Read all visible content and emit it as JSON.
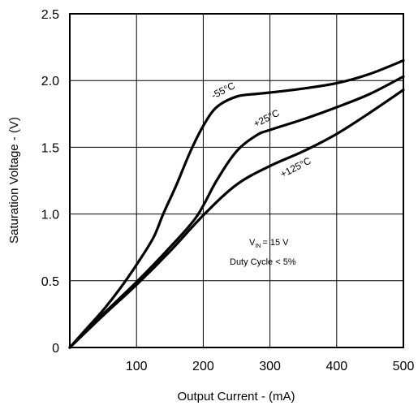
{
  "chart_data": {
    "type": "line",
    "xlabel": "Output Current - (mA)",
    "ylabel": "Saturation Voltage - (V)",
    "xlim": [
      0,
      500
    ],
    "ylim": [
      0,
      2.5
    ],
    "x_ticks": [
      100,
      200,
      300,
      400,
      500
    ],
    "x_tick_labels": [
      "100",
      "200",
      "300",
      "400",
      "500"
    ],
    "y_ticks": [
      0,
      0.5,
      1.0,
      1.5,
      2.0,
      2.5
    ],
    "y_tick_labels": [
      "0",
      "0.5",
      "1.0",
      "1.5",
      "2.0",
      "2.5"
    ],
    "grid": true,
    "series": [
      {
        "name": "-55°C",
        "x": [
          0,
          25,
          50,
          75,
          100,
          125,
          140,
          160,
          180,
          200,
          220,
          250,
          280,
          300,
          350,
          400,
          450,
          500
        ],
        "y": [
          0,
          0.14,
          0.28,
          0.44,
          0.62,
          0.82,
          1.0,
          1.22,
          1.46,
          1.66,
          1.8,
          1.88,
          1.9,
          1.91,
          1.94,
          1.98,
          2.05,
          2.15
        ]
      },
      {
        "name": "+25°C",
        "x": [
          0,
          50,
          100,
          150,
          190,
          220,
          250,
          280,
          300,
          350,
          400,
          450,
          500
        ],
        "y": [
          0,
          0.25,
          0.49,
          0.75,
          0.98,
          1.25,
          1.47,
          1.59,
          1.63,
          1.71,
          1.8,
          1.9,
          2.03
        ]
      },
      {
        "name": "+125°C",
        "x": [
          0,
          50,
          100,
          150,
          200,
          250,
          300,
          350,
          400,
          450,
          500
        ],
        "y": [
          0,
          0.24,
          0.47,
          0.72,
          0.99,
          1.22,
          1.36,
          1.47,
          1.6,
          1.76,
          1.93
        ]
      }
    ],
    "annotation": {
      "vin_prefix": "V",
      "vin_subscript": "IN",
      "vin_value": "= 15 V",
      "duty_cycle": "Duty Cycle < 5%"
    }
  }
}
